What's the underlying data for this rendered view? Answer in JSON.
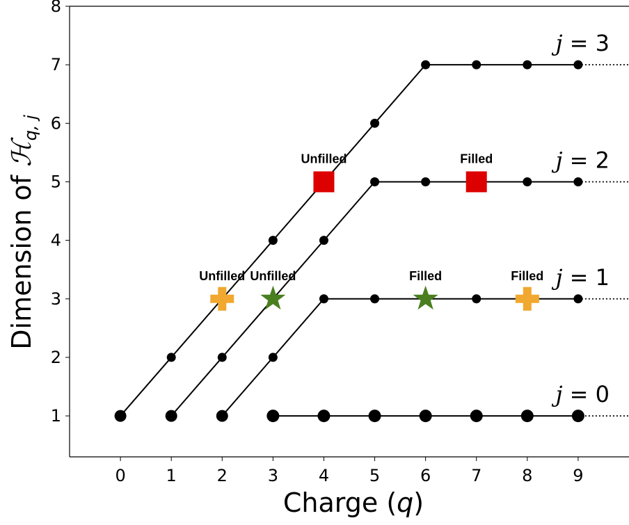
{
  "chart_data": {
    "type": "line",
    "xlabel": {
      "pre": "Charge (",
      "var": "q",
      "post": ")"
    },
    "ylabel": {
      "pre": "Dimension of ",
      "sym": "ℋ",
      "sub": "q, j"
    },
    "x_ticks": [
      "0",
      "1",
      "2",
      "3",
      "4",
      "5",
      "6",
      "7",
      "8",
      "9"
    ],
    "y_ticks": [
      "1",
      "2",
      "3",
      "4",
      "5",
      "6",
      "7",
      "8"
    ],
    "xlim": [
      -1,
      10
    ],
    "ylim": [
      0.3,
      8
    ],
    "grid": false,
    "series": [
      {
        "name": "j = 0",
        "label_var": "j",
        "label_rest": " = 0",
        "x": [
          3,
          4,
          5,
          6,
          7,
          8,
          9
        ],
        "y": [
          1,
          1,
          1,
          1,
          1,
          1,
          1
        ],
        "big_markers": true
      },
      {
        "name": "j = 1",
        "label_var": "j",
        "label_rest": " = 1",
        "x": [
          2,
          3,
          4,
          5,
          6,
          7,
          8,
          9
        ],
        "y": [
          1,
          2,
          3,
          3,
          3,
          3,
          3,
          3
        ],
        "big_markers": false
      },
      {
        "name": "j = 2",
        "label_var": "j",
        "label_rest": " = 2",
        "x": [
          1,
          2,
          3,
          4,
          5,
          6,
          7,
          8,
          9
        ],
        "y": [
          1,
          2,
          3,
          4,
          5,
          5,
          5,
          5,
          5
        ],
        "big_markers": false
      },
      {
        "name": "j = 3",
        "label_var": "j",
        "label_rest": " = 3",
        "x": [
          0,
          1,
          2,
          3,
          4,
          5,
          6,
          7,
          8,
          9
        ],
        "y": [
          1,
          2,
          3,
          4,
          5,
          6,
          7,
          7,
          7,
          7
        ],
        "big_markers": false
      }
    ],
    "dotted_continuation_from_x": 9,
    "special_markers": [
      {
        "shape": "square",
        "color": "#dd0000",
        "x": 4,
        "y": 5,
        "label": "Unfilled"
      },
      {
        "shape": "square",
        "color": "#dd0000",
        "x": 7,
        "y": 5,
        "label": "Filled"
      },
      {
        "shape": "star",
        "color": "#4a7f20",
        "x": 3,
        "y": 3,
        "label": "Unfilled"
      },
      {
        "shape": "star",
        "color": "#4a7f20",
        "x": 6,
        "y": 3,
        "label": "Filled"
      },
      {
        "shape": "plus",
        "color": "#f0a830",
        "x": 2,
        "y": 3,
        "label": "Unfilled"
      },
      {
        "shape": "plus",
        "color": "#f0a830",
        "x": 8,
        "y": 3,
        "label": "Filled"
      }
    ]
  }
}
